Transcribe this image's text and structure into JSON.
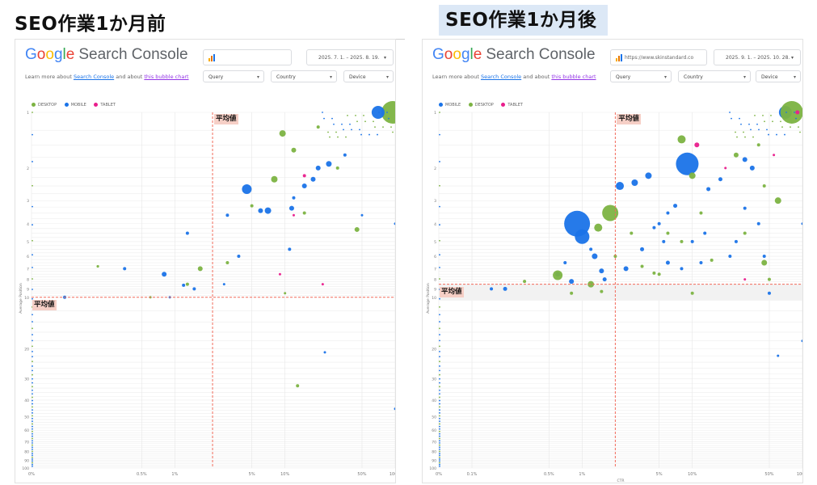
{
  "headings": {
    "before": "SEO作業1か月前",
    "after": "SEO作業1か月後"
  },
  "brand": {
    "google": [
      "G",
      "o",
      "o",
      "g",
      "l",
      "e"
    ],
    "search_console": "Search Console"
  },
  "learn_text": {
    "prefix": "Learn more about ",
    "link1": "Search Console",
    "middle": " and about ",
    "link2": "this bubble chart"
  },
  "colors": {
    "desktop": "#7cb342",
    "mobile": "#1a73e8",
    "tablet": "#e91e8c",
    "avg_line": "#f26b5b",
    "avg_badge": "#f6cfc6",
    "heading_highlight": "#dce8f6"
  },
  "panels": [
    {
      "id": "before",
      "property_text": "",
      "date_range": "2025. 7. 1. – 2025. 8. 19.",
      "filters": [
        "Query",
        "Country",
        "Device"
      ],
      "legend": [
        "DESKTOP",
        "MOBILE",
        "TABLET"
      ],
      "avg_label_x": "平均値",
      "avg_label_y": "平均値",
      "x_ticks": [
        "0%",
        "0.5%",
        "1%",
        "5%",
        "10%",
        "50%",
        "100%"
      ],
      "y_ticks": [
        "1",
        "2",
        "3",
        "4",
        "5",
        "6",
        "7",
        "8",
        "9",
        "10",
        "20",
        "30",
        "40",
        "50",
        "60",
        "70",
        "80",
        "90",
        "100"
      ],
      "ylabel": "Average Position",
      "xlabel": ""
    },
    {
      "id": "after",
      "property_text": "https://www.skinstandard.co",
      "date_range": "2025. 9. 1. – 2025. 10. 28.",
      "filters": [
        "Query",
        "Country",
        "Device"
      ],
      "legend": [
        "MOBILE",
        "DESKTOP",
        "TABLET"
      ],
      "avg_label_x": "平均値",
      "avg_label_y": "平均値",
      "x_ticks": [
        "0%",
        "0.1%",
        "0.5%",
        "1%",
        "5%",
        "10%",
        "50%",
        "100%"
      ],
      "y_ticks": [
        "1",
        "2",
        "3",
        "4",
        "5",
        "6",
        "7",
        "8",
        "9",
        "10",
        "20",
        "30",
        "40",
        "50",
        "60",
        "70",
        "80",
        "90",
        "100"
      ],
      "ylabel": "Average Position",
      "xlabel": "CTR"
    }
  ],
  "chart_data": [
    {
      "type": "scatter",
      "title": "SEO作業1か月前",
      "x_axis": "CTR (log scale)",
      "y_axis": "Average Position (inverted)",
      "avg_ctr": 2.2,
      "avg_position": 10,
      "series": [
        {
          "name": "DESKTOP",
          "points": [
            [
              95,
              1,
              14
            ],
            [
              9.5,
              1.3,
              4
            ],
            [
              12,
              1.6,
              3
            ],
            [
              8,
              2.3,
              4
            ],
            [
              5,
              3.2,
              2
            ],
            [
              3,
              6.5,
              2
            ],
            [
              0.2,
              6.8,
              1.6
            ],
            [
              1.7,
              7,
              3
            ],
            [
              1.3,
              8.5,
              2
            ],
            [
              10,
              9.5,
              1.5
            ],
            [
              0.6,
              10,
              1.5
            ],
            [
              13,
              33,
              2
            ],
            [
              45,
              4.3,
              3
            ],
            [
              30,
              2,
              2
            ],
            [
              20,
              1.2,
              2
            ],
            [
              15,
              3.5,
              2
            ]
          ]
        },
        {
          "name": "MOBILE",
          "points": [
            [
              70,
              1,
              8
            ],
            [
              4.5,
              2.6,
              6
            ],
            [
              7,
              3.4,
              4
            ],
            [
              6,
              3.4,
              3
            ],
            [
              25,
              1.9,
              3.5
            ],
            [
              20,
              2,
              3
            ],
            [
              18,
              2.3,
              3
            ],
            [
              15,
              2.5,
              3
            ],
            [
              35,
              1.7,
              2
            ],
            [
              0.35,
              7,
              2
            ],
            [
              0.8,
              7.5,
              3
            ],
            [
              1.2,
              8.6,
              2
            ],
            [
              1.5,
              9,
              2
            ],
            [
              0.9,
              10,
              1.5
            ],
            [
              0.1,
              10,
              2
            ],
            [
              3.8,
              6,
              2
            ],
            [
              11,
              5.5,
              2
            ],
            [
              11.5,
              3.3,
              3
            ],
            [
              12,
              2.9,
              2
            ],
            [
              3,
              3.6,
              2
            ],
            [
              23,
              21,
              1.5
            ],
            [
              100,
              4,
              1.5
            ],
            [
              100,
              45,
              1.5
            ],
            [
              50,
              3.6,
              1.5
            ],
            [
              2.8,
              8.5,
              1.5
            ],
            [
              1.3,
              4.5,
              2
            ]
          ]
        },
        {
          "name": "TABLET",
          "points": [
            [
              15,
              2.2,
              2
            ],
            [
              9,
              7.5,
              1.5
            ],
            [
              22,
              8.5,
              1.5
            ],
            [
              12,
              3.6,
              1.5
            ]
          ]
        }
      ]
    },
    {
      "type": "scatter",
      "title": "SEO作業1か月後",
      "x_axis": "CTR (log scale)",
      "y_axis": "Average Position (inverted)",
      "avg_ctr": 2.0,
      "avg_position": 8.5,
      "series": [
        {
          "name": "MOBILE",
          "points": [
            [
              9,
              1.9,
              14
            ],
            [
              70,
              1,
              8
            ],
            [
              0.9,
              4,
              16
            ],
            [
              1,
              4.7,
              9
            ],
            [
              2.2,
              2.5,
              5
            ],
            [
              4,
              2.2,
              4
            ],
            [
              3,
              2.4,
              4
            ],
            [
              30,
              1.8,
              3
            ],
            [
              35,
              2,
              3
            ],
            [
              18,
              2.3,
              2.5
            ],
            [
              14,
              2.6,
              2.5
            ],
            [
              7,
              3.2,
              2.5
            ],
            [
              6,
              3.5,
              2
            ],
            [
              1.3,
              6,
              3.5
            ],
            [
              0.6,
              7.5,
              3
            ],
            [
              0.8,
              8.2,
              3
            ],
            [
              1.5,
              7.2,
              3
            ],
            [
              2.5,
              7,
              3
            ],
            [
              1.6,
              8,
              2.5
            ],
            [
              0.2,
              9,
              2.5
            ],
            [
              0.15,
              9,
              2
            ],
            [
              5.5,
              5,
              2
            ],
            [
              10,
              5,
              2
            ],
            [
              13,
              4.5,
              2
            ],
            [
              6,
              6.5,
              2.5
            ],
            [
              8,
              7,
              2
            ],
            [
              12,
              6.5,
              2
            ],
            [
              22,
              6,
              2
            ],
            [
              40,
              4,
              2
            ],
            [
              45,
              6,
              2
            ],
            [
              50,
              9.5,
              2
            ],
            [
              100,
              4,
              1.5
            ],
            [
              100,
              18,
              1.5
            ],
            [
              60,
              22,
              1.5
            ],
            [
              3.5,
              5.5,
              2.5
            ],
            [
              4.5,
              4.2,
              2
            ],
            [
              5,
              4,
              2
            ],
            [
              25,
              5,
              2
            ],
            [
              30,
              3.3,
              2
            ],
            [
              0.7,
              6.5,
              2
            ],
            [
              1.2,
              5.5,
              2
            ]
          ]
        },
        {
          "name": "DESKTOP",
          "points": [
            [
              80,
              1,
              14
            ],
            [
              1.8,
              3.5,
              10
            ],
            [
              8,
              1.4,
              5
            ],
            [
              10,
              2.2,
              4
            ],
            [
              0.6,
              7.6,
              6
            ],
            [
              1.2,
              8.5,
              4
            ],
            [
              1.4,
              4.2,
              5
            ],
            [
              60,
              3,
              4
            ],
            [
              45,
              6.5,
              3.5
            ],
            [
              25,
              1.7,
              3
            ],
            [
              3.5,
              6.8,
              2
            ],
            [
              0.8,
              9.5,
              2
            ],
            [
              10,
              9.5,
              2
            ],
            [
              12,
              3.5,
              2
            ],
            [
              40,
              1.5,
              2
            ],
            [
              8,
              5,
              2
            ],
            [
              15,
              6.3,
              2
            ],
            [
              5,
              7.5,
              2
            ],
            [
              0.3,
              8.2,
              2
            ],
            [
              1.5,
              9.3,
              2
            ],
            [
              2,
              6,
              2
            ],
            [
              2.8,
              4.5,
              2
            ],
            [
              30,
              4.5,
              2
            ],
            [
              50,
              8,
              2
            ],
            [
              45,
              2.5,
              2
            ],
            [
              4.5,
              7.4,
              2
            ],
            [
              6,
              4.5,
              2
            ]
          ]
        },
        {
          "name": "TABLET",
          "points": [
            [
              11,
              1.5,
              3
            ],
            [
              90,
              1,
              2.5
            ],
            [
              30,
              8,
              1.5
            ],
            [
              55,
              1.7,
              1.5
            ],
            [
              20,
              2,
              1.5
            ]
          ]
        }
      ]
    }
  ]
}
